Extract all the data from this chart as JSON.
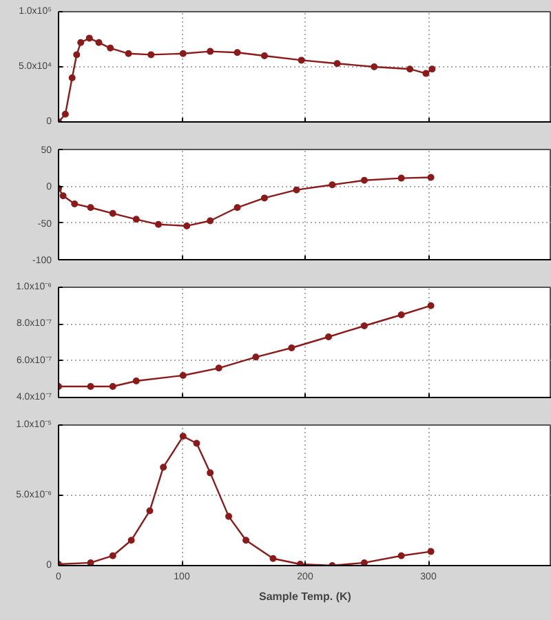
{
  "chart_data": [
    {
      "type": "line",
      "marker": "circle",
      "grid": true,
      "tick_labels": "y",
      "xlim": [
        0,
        400
      ],
      "xticks": [
        0,
        100,
        200,
        300
      ],
      "ylim": [
        0,
        100000
      ],
      "yticks": [
        0,
        {
          "value": 50000,
          "label": "5.0x10⁴"
        },
        {
          "value": 100000,
          "label": "1.0x10⁵"
        }
      ],
      "series": [
        {
          "color": "#8b1a1a",
          "x": [
            0,
            5.5,
            11,
            14.7,
            18,
            25,
            32.7,
            42,
            56.7,
            75,
            101,
            123,
            145,
            167,
            197,
            226,
            256,
            285,
            298,
            303
          ],
          "values": [
            0,
            7000,
            40000,
            61000,
            72000,
            76000,
            72000,
            67000,
            62000,
            61000,
            62000,
            64000,
            63000,
            60000,
            56000,
            53000,
            50000,
            48000,
            44000,
            48000
          ]
        }
      ]
    },
    {
      "type": "line",
      "marker": "circle",
      "grid": true,
      "tick_labels": "y",
      "xlim": [
        0,
        400
      ],
      "xticks": [
        0,
        100,
        200,
        300
      ],
      "ylim": [
        -100,
        50
      ],
      "yticks": [
        -100,
        -50,
        0,
        50
      ],
      "series": [
        {
          "color": "#8b1a1a",
          "x": [
            0,
            3.7,
            13,
            26,
            44,
            63,
            81,
            104,
            123,
            145,
            167,
            193,
            222,
            248,
            278,
            302
          ],
          "values": [
            -3,
            -13,
            -24,
            -29,
            -37,
            -45,
            -52,
            -54,
            -47,
            -29,
            -16,
            -5,
            2,
            8,
            11,
            12
          ]
        }
      ]
    },
    {
      "type": "line",
      "marker": "circle",
      "grid": true,
      "tick_labels": "y",
      "xlim": [
        0,
        400
      ],
      "xticks": [
        0,
        100,
        200,
        300
      ],
      "ylim": [
        4e-07,
        1e-06
      ],
      "yticks": [
        {
          "value": 4e-07,
          "label": "4.0x10⁻⁷"
        },
        {
          "value": 6e-07,
          "label": "6.0x10⁻⁷"
        },
        {
          "value": 8e-07,
          "label": "8.0x10⁻⁷"
        },
        {
          "value": 1e-06,
          "label": "1.0x10⁻⁶"
        }
      ],
      "series": [
        {
          "color": "#8b1a1a",
          "x": [
            0,
            26,
            44,
            63,
            101,
            130,
            160,
            189,
            219,
            248,
            278,
            302
          ],
          "values": [
            4.6e-07,
            4.6e-07,
            4.6e-07,
            4.9e-07,
            5.2e-07,
            5.6e-07,
            6.2e-07,
            6.7e-07,
            7.3e-07,
            7.9e-07,
            8.5e-07,
            9e-07
          ]
        }
      ]
    },
    {
      "type": "line",
      "marker": "circle",
      "grid": true,
      "xlabel": "Sample Temp. (K)",
      "xlim": [
        0,
        400
      ],
      "xticks": [
        0,
        100,
        200,
        300
      ],
      "ylim": [
        0,
        1e-05
      ],
      "yticks": [
        0,
        {
          "value": 5e-06,
          "label": "5.0x10⁻⁶"
        },
        {
          "value": 1e-05,
          "label": "1.0x10⁻⁵"
        }
      ],
      "series": [
        {
          "color": "#8b1a1a",
          "x": [
            0,
            26,
            44,
            59,
            74,
            85,
            101,
            112,
            123,
            138,
            152,
            174,
            196,
            222,
            248,
            278,
            302
          ],
          "values": [
            1e-07,
            2e-07,
            7e-07,
            1.8e-06,
            3.9e-06,
            7e-06,
            9.2e-06,
            8.7e-06,
            6.6e-06,
            3.5e-06,
            1.8e-06,
            5e-07,
            1e-07,
            0,
            2e-07,
            7e-07,
            1e-06
          ]
        }
      ]
    }
  ]
}
